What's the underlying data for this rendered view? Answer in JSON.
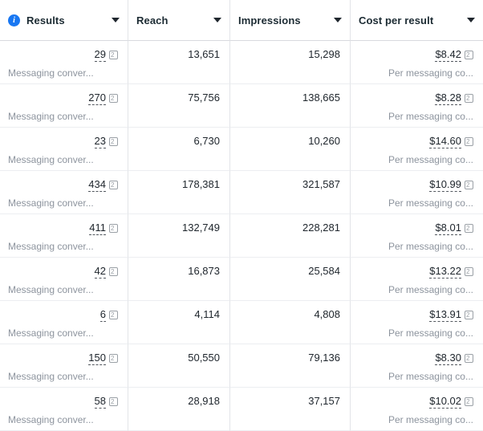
{
  "header": {
    "columns": [
      {
        "label": "Results",
        "has_info_icon": true
      },
      {
        "label": "Reach"
      },
      {
        "label": "Impressions"
      },
      {
        "label": "Cost per result"
      }
    ]
  },
  "results_sublabel": "Messaging conver...",
  "cost_sublabel": "Per messaging co...",
  "rows": [
    {
      "results": "29",
      "results_label": "Messaging conver...",
      "reach": "13,651",
      "impressions": "15,298",
      "cost": "$8.42",
      "cost_label": "Per messaging co..."
    },
    {
      "results": "270",
      "results_label": "Messaging conver...",
      "reach": "75,756",
      "impressions": "138,665",
      "cost": "$8.28",
      "cost_label": "Per messaging co..."
    },
    {
      "results": "23",
      "results_label": "Messaging conver...",
      "reach": "6,730",
      "impressions": "10,260",
      "cost": "$14.60",
      "cost_label": "Per messaging co..."
    },
    {
      "results": "434",
      "results_label": "Messaging conver...",
      "reach": "178,381",
      "impressions": "321,587",
      "cost": "$10.99",
      "cost_label": "Per messaging co..."
    },
    {
      "results": "411",
      "results_label": "Messaging conver...",
      "reach": "132,749",
      "impressions": "228,281",
      "cost": "$8.01",
      "cost_label": "Per messaging co..."
    },
    {
      "results": "42",
      "results_label": "Messaging conver...",
      "reach": "16,873",
      "impressions": "25,584",
      "cost": "$13.22",
      "cost_label": "Per messaging co..."
    },
    {
      "results": "6",
      "results_label": "Messaging conver...",
      "reach": "4,114",
      "impressions": "4,808",
      "cost": "$13.91",
      "cost_label": "Per messaging co..."
    },
    {
      "results": "150",
      "results_label": "Messaging conver...",
      "reach": "50,550",
      "impressions": "79,136",
      "cost": "$8.30",
      "cost_label": "Per messaging co..."
    },
    {
      "results": "58",
      "results_label": "Messaging conver...",
      "reach": "28,918",
      "impressions": "37,157",
      "cost": "$10.02",
      "cost_label": "Per messaging co..."
    }
  ],
  "colors": {
    "accent_blue": "#1877f2",
    "header_text": "#1c2b33",
    "value_text": "#20272e",
    "sublabel_text": "#8d949e",
    "divider": "#e2e4e8"
  }
}
